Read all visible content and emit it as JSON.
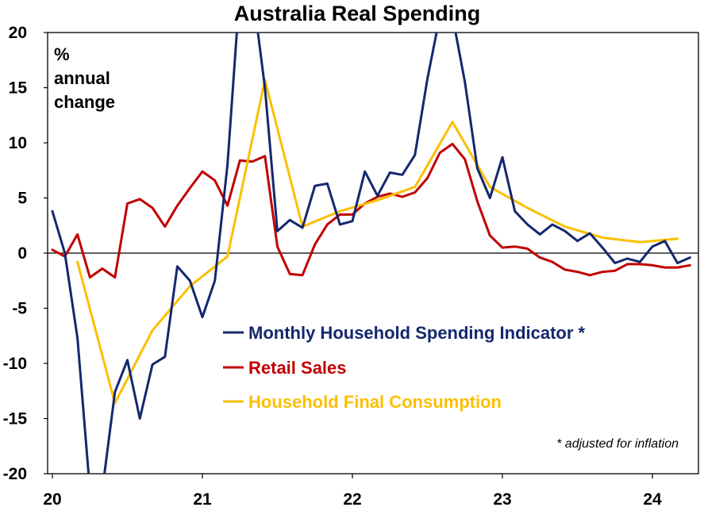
{
  "chart_data": {
    "type": "line",
    "title": "Australia Real Spending",
    "ylabel_lines": [
      "%",
      "annual",
      "change"
    ],
    "ylim": [
      -20,
      20
    ],
    "yticks": [
      -20,
      -15,
      -10,
      -5,
      0,
      5,
      10,
      15,
      20
    ],
    "ytick_labels": [
      "-20",
      "-15",
      "-10",
      "-5",
      "0",
      "5",
      "10",
      "15",
      "20"
    ],
    "xlim": [
      2020.0,
      2024.33
    ],
    "xticks": [
      2020,
      2021,
      2022,
      2023,
      2024
    ],
    "xtick_labels": [
      "20",
      "21",
      "22",
      "23",
      "24"
    ],
    "legend_position": "center",
    "note": "* adjusted for inflation",
    "series": [
      {
        "name": "Monthly Household Spending Indicator *",
        "color": "#14286e",
        "points": [
          [
            2020.0,
            3.8
          ],
          [
            2020.083,
            0.0
          ],
          [
            2020.167,
            -7.7
          ],
          [
            2020.25,
            -21.5
          ],
          [
            2020.333,
            -21.5
          ],
          [
            2020.417,
            -12.6
          ],
          [
            2020.5,
            -9.7
          ],
          [
            2020.583,
            -15.0
          ],
          [
            2020.667,
            -10.1
          ],
          [
            2020.75,
            -9.4
          ],
          [
            2020.833,
            -1.2
          ],
          [
            2020.917,
            -2.5
          ],
          [
            2021.0,
            -5.8
          ],
          [
            2021.083,
            -2.5
          ],
          [
            2021.167,
            8.0
          ],
          [
            2021.25,
            24.0
          ],
          [
            2021.333,
            24.0
          ],
          [
            2021.417,
            15.0
          ],
          [
            2021.5,
            2.0
          ],
          [
            2021.583,
            3.0
          ],
          [
            2021.667,
            2.3
          ],
          [
            2021.75,
            6.1
          ],
          [
            2021.833,
            6.3
          ],
          [
            2021.917,
            2.6
          ],
          [
            2022.0,
            2.9
          ],
          [
            2022.083,
            7.4
          ],
          [
            2022.167,
            5.2
          ],
          [
            2022.25,
            7.3
          ],
          [
            2022.333,
            7.1
          ],
          [
            2022.417,
            8.9
          ],
          [
            2022.5,
            15.8
          ],
          [
            2022.583,
            21.5
          ],
          [
            2022.667,
            21.5
          ],
          [
            2022.75,
            15.5
          ],
          [
            2022.833,
            7.7
          ],
          [
            2022.917,
            5.0
          ],
          [
            2023.0,
            8.7
          ],
          [
            2023.083,
            3.8
          ],
          [
            2023.167,
            2.6
          ],
          [
            2023.25,
            1.7
          ],
          [
            2023.333,
            2.6
          ],
          [
            2023.417,
            2.0
          ],
          [
            2023.5,
            1.1
          ],
          [
            2023.583,
            1.8
          ],
          [
            2023.667,
            0.5
          ],
          [
            2023.75,
            -0.9
          ],
          [
            2023.833,
            -0.5
          ],
          [
            2023.917,
            -0.8
          ],
          [
            2024.0,
            0.6
          ],
          [
            2024.083,
            1.1
          ],
          [
            2024.167,
            -0.9
          ],
          [
            2024.25,
            -0.4
          ]
        ]
      },
      {
        "name": "Retail Sales",
        "color": "#c00000",
        "points": [
          [
            2020.0,
            0.3
          ],
          [
            2020.083,
            -0.3
          ],
          [
            2020.167,
            1.7
          ],
          [
            2020.25,
            -2.2
          ],
          [
            2020.333,
            -1.4
          ],
          [
            2020.417,
            -2.2
          ],
          [
            2020.5,
            4.5
          ],
          [
            2020.583,
            4.9
          ],
          [
            2020.667,
            4.1
          ],
          [
            2020.75,
            2.4
          ],
          [
            2020.833,
            4.3
          ],
          [
            2020.917,
            5.9
          ],
          [
            2021.0,
            7.4
          ],
          [
            2021.083,
            6.6
          ],
          [
            2021.167,
            4.3
          ],
          [
            2021.25,
            8.4
          ],
          [
            2021.333,
            8.3
          ],
          [
            2021.417,
            8.8
          ],
          [
            2021.5,
            0.6
          ],
          [
            2021.583,
            -1.9
          ],
          [
            2021.667,
            -2.0
          ],
          [
            2021.75,
            0.8
          ],
          [
            2021.833,
            2.6
          ],
          [
            2021.917,
            3.5
          ],
          [
            2022.0,
            3.5
          ],
          [
            2022.083,
            4.5
          ],
          [
            2022.167,
            5.1
          ],
          [
            2022.25,
            5.4
          ],
          [
            2022.333,
            5.1
          ],
          [
            2022.417,
            5.5
          ],
          [
            2022.5,
            6.8
          ],
          [
            2022.583,
            9.1
          ],
          [
            2022.667,
            9.9
          ],
          [
            2022.75,
            8.5
          ],
          [
            2022.833,
            4.7
          ],
          [
            2022.917,
            1.6
          ],
          [
            2023.0,
            0.5
          ],
          [
            2023.083,
            0.6
          ],
          [
            2023.167,
            0.4
          ],
          [
            2023.25,
            -0.4
          ],
          [
            2023.333,
            -0.8
          ],
          [
            2023.417,
            -1.5
          ],
          [
            2023.5,
            -1.7
          ],
          [
            2023.583,
            -2.0
          ],
          [
            2023.667,
            -1.7
          ],
          [
            2023.75,
            -1.6
          ],
          [
            2023.833,
            -1.0
          ],
          [
            2023.917,
            -1.0
          ],
          [
            2024.0,
            -1.1
          ],
          [
            2024.083,
            -1.3
          ],
          [
            2024.167,
            -1.3
          ],
          [
            2024.25,
            -1.1
          ]
        ]
      },
      {
        "name": "Household Final Consumption",
        "color": "#fbbf00",
        "points": [
          [
            2020.167,
            -0.8
          ],
          [
            2020.417,
            -13.6
          ],
          [
            2020.667,
            -7.0
          ],
          [
            2020.917,
            -3.0
          ],
          [
            2021.167,
            -0.3
          ],
          [
            2021.417,
            15.7
          ],
          [
            2021.667,
            2.4
          ],
          [
            2021.917,
            3.8
          ],
          [
            2022.167,
            4.8
          ],
          [
            2022.417,
            6.0
          ],
          [
            2022.667,
            11.9
          ],
          [
            2022.917,
            6.0
          ],
          [
            2023.167,
            4.1
          ],
          [
            2023.417,
            2.4
          ],
          [
            2023.667,
            1.4
          ],
          [
            2023.917,
            1.0
          ],
          [
            2024.167,
            1.3
          ]
        ]
      }
    ]
  }
}
